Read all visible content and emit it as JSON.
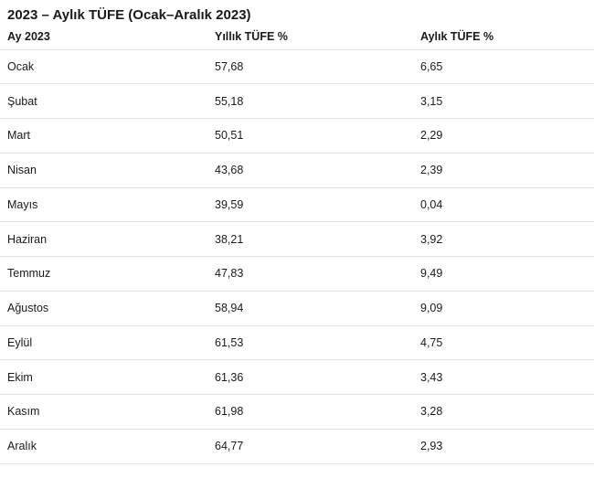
{
  "title": "2023 – Aylık TÜFE (Ocak–Aralık 2023)",
  "table": {
    "columns": [
      "Ay 2023",
      "Yıllık TÜFE %",
      "Aylık TÜFE %"
    ],
    "rows": [
      {
        "month": "Ocak",
        "yearly": "57,68",
        "monthly": "6,65"
      },
      {
        "month": "Şubat",
        "yearly": "55,18",
        "monthly": "3,15"
      },
      {
        "month": "Mart",
        "yearly": "50,51",
        "monthly": "2,29"
      },
      {
        "month": "Nisan",
        "yearly": "43,68",
        "monthly": "2,39"
      },
      {
        "month": "Mayıs",
        "yearly": "39,59",
        "monthly": "0,04"
      },
      {
        "month": "Haziran",
        "yearly": "38,21",
        "monthly": "3,92"
      },
      {
        "month": "Temmuz",
        "yearly": "47,83",
        "monthly": "9,49"
      },
      {
        "month": "Ağustos",
        "yearly": "58,94",
        "monthly": "9,09"
      },
      {
        "month": "Eylül",
        "yearly": "61,53",
        "monthly": "4,75"
      },
      {
        "month": "Ekim",
        "yearly": "61,36",
        "monthly": "3,43"
      },
      {
        "month": "Kasım",
        "yearly": "61,98",
        "monthly": "3,28"
      },
      {
        "month": "Aralık",
        "yearly": "64,77",
        "monthly": "2,93"
      }
    ]
  },
  "colors": {
    "background": "#ffffff",
    "text": "#1b1a19",
    "divider": "#e1e1e1"
  },
  "chart_data": {
    "type": "table",
    "title": "2023 – Aylık TÜFE (Ocak–Aralık 2023)",
    "columns": [
      "Ay 2023",
      "Yıllık TÜFE %",
      "Aylık TÜFE %"
    ],
    "categories": [
      "Ocak",
      "Şubat",
      "Mart",
      "Nisan",
      "Mayıs",
      "Haziran",
      "Temmuz",
      "Ağustos",
      "Eylül",
      "Ekim",
      "Kasım",
      "Aralık"
    ],
    "series": [
      {
        "name": "Yıllık TÜFE %",
        "values": [
          57.68,
          55.18,
          50.51,
          43.68,
          39.59,
          38.21,
          47.83,
          58.94,
          61.53,
          61.36,
          61.98,
          64.77
        ]
      },
      {
        "name": "Aylık TÜFE %",
        "values": [
          6.65,
          3.15,
          2.29,
          2.39,
          0.04,
          3.92,
          9.49,
          9.09,
          4.75,
          3.43,
          3.28,
          2.93
        ]
      }
    ]
  }
}
